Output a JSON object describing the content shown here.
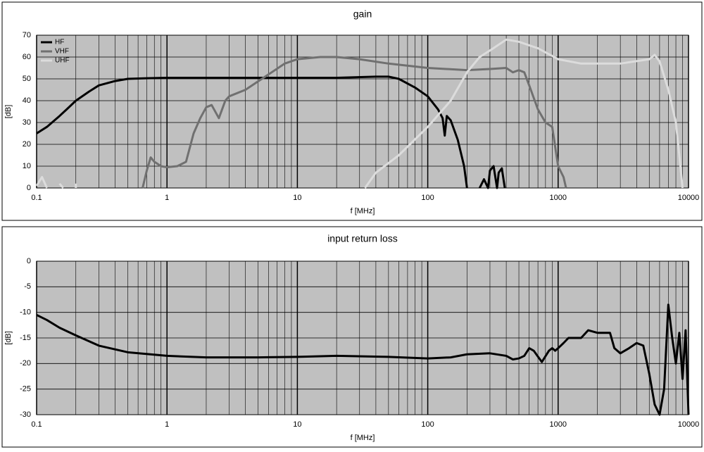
{
  "chart_data": [
    {
      "type": "line",
      "title": "gain",
      "xlabel": "f [MHz]",
      "ylabel": "[dB]",
      "xscale": "log",
      "xlim": [
        0.1,
        10000
      ],
      "xticks": [
        0.1,
        1,
        10,
        100,
        1000,
        10000
      ],
      "minor_xticks": [
        0.2,
        0.3,
        0.4,
        0.5,
        0.6,
        0.7,
        0.8,
        0.9,
        2,
        3,
        4,
        5,
        6,
        7,
        8,
        9,
        20,
        30,
        40,
        50,
        60,
        70,
        80,
        90,
        200,
        300,
        400,
        500,
        600,
        700,
        800,
        900,
        2000,
        3000,
        4000,
        5000,
        6000,
        7000,
        8000,
        9000
      ],
      "ylim": [
        0,
        70
      ],
      "yticks": [
        0,
        10,
        20,
        30,
        40,
        50,
        60,
        70
      ],
      "grid": true,
      "background": "#c0c0c0",
      "legend": "upper left",
      "series": [
        {
          "name": "HF",
          "color": "#000000",
          "x": [
            0.1,
            0.12,
            0.15,
            0.17,
            0.2,
            0.25,
            0.3,
            0.4,
            0.5,
            0.7,
            1,
            2,
            5,
            10,
            20,
            40,
            50,
            60,
            80,
            100,
            120,
            130,
            135,
            140,
            150,
            170,
            190,
            200,
            220,
            250,
            270,
            290,
            300,
            320,
            340,
            350,
            370,
            390,
            420,
            450
          ],
          "values": [
            25,
            28,
            33,
            36,
            40,
            44,
            47,
            49,
            50,
            50.3,
            50.5,
            50.5,
            50.5,
            50.5,
            50.5,
            51,
            51,
            50,
            46,
            42,
            36,
            32,
            24,
            33,
            31,
            22,
            10,
            0,
            null,
            0,
            4,
            0,
            8,
            10,
            0,
            7,
            9,
            0,
            null,
            2
          ]
        },
        {
          "name": "VHF",
          "color": "#707070",
          "x": [
            0.65,
            0.7,
            0.75,
            0.8,
            0.9,
            1,
            1.2,
            1.4,
            1.6,
            1.8,
            2,
            2.2,
            2.5,
            2.8,
            3,
            4,
            6,
            8,
            10,
            15,
            20,
            30,
            50,
            100,
            200,
            300,
            400,
            450,
            500,
            550,
            600,
            700,
            800,
            900,
            1000,
            1100,
            1150
          ],
          "values": [
            0,
            8,
            14,
            12,
            10,
            9.5,
            10,
            12,
            25,
            32,
            37,
            38,
            32,
            40,
            42,
            45,
            52,
            57,
            59,
            60,
            60,
            59,
            57,
            55,
            54,
            54.5,
            55,
            53,
            54,
            53,
            47,
            36,
            30,
            28,
            10,
            5,
            0
          ]
        },
        {
          "name": "UHF",
          "color": "#dcdcdc",
          "x": [
            0.1,
            0.11,
            0.12,
            0.13,
            0.15,
            0.16,
            0.18,
            0.2,
            0.2,
            30,
            33,
            40,
            60,
            100,
            150,
            200,
            250,
            300,
            400,
            500,
            700,
            1000,
            1500,
            2000,
            3000,
            5000,
            5500,
            6000,
            7000,
            8000,
            8500,
            9000
          ],
          "values": [
            1,
            5,
            0,
            null,
            2,
            0,
            null,
            2,
            0,
            null,
            0,
            7,
            15,
            28,
            40,
            53,
            60,
            63,
            68,
            67,
            64,
            59,
            57,
            57,
            57,
            59,
            61,
            58,
            45,
            30,
            15,
            0
          ]
        }
      ]
    },
    {
      "type": "line",
      "title": "input return loss",
      "xlabel": "f [MHz]",
      "ylabel": "[dB]",
      "xscale": "log",
      "xlim": [
        0.1,
        10000
      ],
      "xticks": [
        0.1,
        1,
        10,
        100,
        1000,
        10000
      ],
      "minor_xticks": [
        0.2,
        0.3,
        0.4,
        0.5,
        0.6,
        0.7,
        0.8,
        0.9,
        2,
        3,
        4,
        5,
        6,
        7,
        8,
        9,
        20,
        30,
        40,
        50,
        60,
        70,
        80,
        90,
        200,
        300,
        400,
        500,
        600,
        700,
        800,
        900,
        2000,
        3000,
        4000,
        5000,
        6000,
        7000,
        8000,
        9000
      ],
      "ylim": [
        -30,
        0
      ],
      "yticks": [
        -30,
        -25,
        -20,
        -15,
        -10,
        -5,
        0
      ],
      "grid": true,
      "background": "#c0c0c0",
      "color": "#000000",
      "x": [
        0.1,
        0.12,
        0.15,
        0.2,
        0.3,
        0.5,
        1,
        2,
        5,
        10,
        20,
        50,
        100,
        150,
        200,
        300,
        400,
        450,
        500,
        550,
        600,
        650,
        750,
        850,
        900,
        950,
        1000,
        1100,
        1200,
        1500,
        1700,
        2000,
        2500,
        2700,
        3000,
        3500,
        4000,
        4500,
        5000,
        5500,
        6000,
        6500,
        7000,
        7500,
        8000,
        8500,
        9000,
        9500,
        10000
      ],
      "values": [
        -10.5,
        -11.5,
        -13,
        -14.5,
        -16.5,
        -17.8,
        -18.5,
        -18.8,
        -18.8,
        -18.7,
        -18.5,
        -18.7,
        -19,
        -18.8,
        -18.2,
        -18,
        -18.5,
        -19.2,
        -19,
        -18.5,
        -17,
        -17.5,
        -19.7,
        -17.5,
        -17,
        -17.5,
        -17,
        -16,
        -15,
        -15,
        -13.5,
        -14,
        -14,
        -17,
        -18,
        -17,
        -16,
        -16.5,
        -22,
        -28,
        -30,
        -25,
        -8.5,
        -15,
        -20,
        -14,
        -23,
        -13.5,
        -30
      ]
    }
  ]
}
